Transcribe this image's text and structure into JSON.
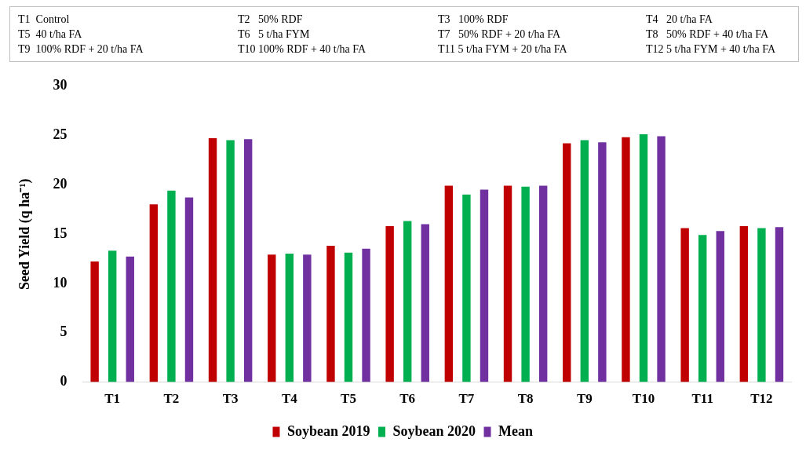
{
  "chart_data": {
    "type": "bar",
    "ylabel": "Seed Yield (q ha⁻¹)",
    "categories": [
      "T1",
      "T2",
      "T3",
      "T4",
      "T5",
      "T6",
      "T7",
      "T8",
      "T9",
      "T10",
      "T11",
      "T12"
    ],
    "series": [
      {
        "name": "Soybean 2019",
        "color": "#c00000",
        "values": [
          12.3,
          18.1,
          24.8,
          13.0,
          13.9,
          15.9,
          20.0,
          20.0,
          24.3,
          24.9,
          15.7,
          15.9
        ]
      },
      {
        "name": "Soybean 2020",
        "color": "#00b050",
        "values": [
          13.4,
          19.5,
          24.6,
          13.1,
          13.2,
          16.4,
          19.1,
          19.9,
          24.6,
          25.2,
          15.0,
          15.7
        ]
      },
      {
        "name": "Mean",
        "color": "#7030a0",
        "values": [
          12.8,
          18.8,
          24.7,
          13.0,
          13.6,
          16.1,
          19.6,
          20.0,
          24.4,
          25.0,
          15.4,
          15.8
        ]
      }
    ],
    "ylim": [
      0,
      30
    ],
    "yticks": [
      0,
      5,
      10,
      15,
      20,
      25,
      30
    ],
    "grid": false,
    "legend": "bottom",
    "annotations": [
      "T1  Control",
      "T2   50% RDF",
      "T3   100% RDF",
      "T4   20 t/ha FA",
      "T5  40 t/ha FA",
      "T6   5 t/ha FYM",
      "T7   50% RDF + 20 t/ha FA",
      "T8   50% RDF + 40 t/ha FA",
      "T9  100% RDF + 20 t/ha FA",
      "T10 100% RDF + 40 t/ha FA",
      "T11 5 t/ha FYM + 20 t/ha FA",
      "T12 5 t/ha FYM + 40 t/ha FA"
    ]
  }
}
